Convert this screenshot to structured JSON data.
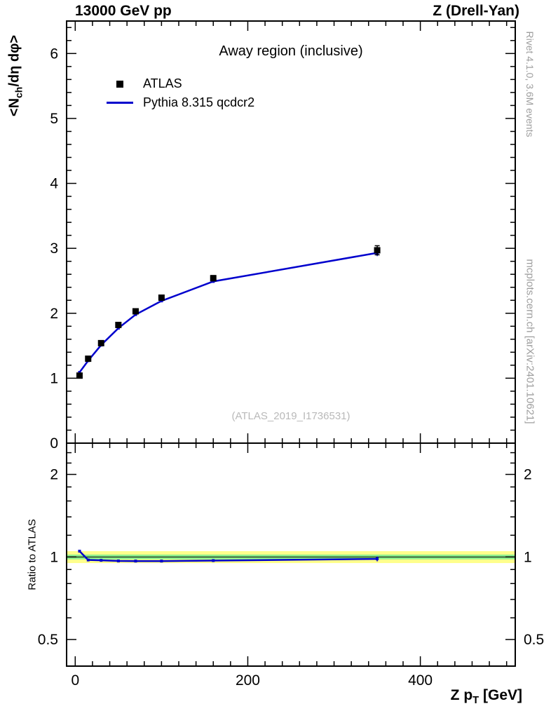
{
  "header": {
    "left": "13000 GeV pp",
    "right": "Z (Drell-Yan)"
  },
  "right_margin": {
    "top": "Rivet 4.1.0,  3.6M events",
    "bottom": "mcplots.cern.ch [arXiv:2401.10621]"
  },
  "main_panel": {
    "title": "Away region (inclusive)",
    "watermark": "(ATLAS_2019_I1736531)",
    "ylabel": {
      "pre": "<N",
      "sub": "ch",
      "post": "/dη dφ>"
    }
  },
  "ratio_panel": {
    "ylabel": "Ratio to ATLAS"
  },
  "x_axis": {
    "label": {
      "pre": "Z p",
      "sub": "T",
      "post": " [GeV]"
    }
  },
  "legend": {
    "items": [
      {
        "label": "ATLAS",
        "marker": "black-square",
        "color": "#000000"
      },
      {
        "label": "Pythia 8.315 qcdcr2",
        "marker": "blue-line",
        "color": "#0000cd"
      }
    ]
  },
  "chart_data": [
    {
      "type": "line",
      "panel": "main",
      "title": "Away region (inclusive)",
      "xlabel": "Z pT [GeV]",
      "ylabel": "<N_ch/deta dphi>",
      "xlim": [
        -10,
        510
      ],
      "ylim": [
        0,
        6.5
      ],
      "xticks": [
        0,
        200,
        400
      ],
      "yticks": [
        0,
        1,
        2,
        3,
        4,
        5,
        6
      ],
      "xminor_step": 20,
      "yminor_step": 0.2,
      "legend_position": "top-left",
      "grid": false,
      "series": [
        {
          "name": "ATLAS",
          "style": "markers",
          "marker": "square",
          "color": "#000000",
          "x": [
            5,
            15,
            30,
            50,
            70,
            100,
            160,
            350
          ],
          "y": [
            1.04,
            1.3,
            1.54,
            1.82,
            2.03,
            2.24,
            2.54,
            2.97
          ],
          "yerr": [
            0.02,
            0.02,
            0.02,
            0.03,
            0.03,
            0.03,
            0.04,
            0.07
          ]
        },
        {
          "name": "Pythia 8.315 qcdcr2",
          "style": "line+markers",
          "color": "#0000cd",
          "x": [
            5,
            15,
            30,
            50,
            70,
            100,
            160,
            350
          ],
          "y": [
            1.09,
            1.27,
            1.51,
            1.77,
            1.98,
            2.19,
            2.49,
            2.93
          ],
          "yerr": [
            0.01,
            0.01,
            0.01,
            0.01,
            0.01,
            0.01,
            0.02,
            0.05
          ]
        }
      ]
    },
    {
      "type": "ratio",
      "panel": "ratio",
      "ylabel": "Ratio to ATLAS",
      "yscale": "log",
      "ylim": [
        0.4,
        2.6
      ],
      "yticks": [
        0.5,
        1,
        2
      ],
      "ytick_labels": [
        "0.5",
        "1",
        "2"
      ],
      "yminors": [
        0.6,
        0.7,
        0.8,
        0.9,
        1.2,
        1.4,
        1.6,
        1.8,
        2.2,
        2.4
      ],
      "reference": 1,
      "bands": [
        {
          "name": "uncertainty-band-outer",
          "color": "#ffff8c",
          "lo": 0.95,
          "hi": 1.05
        },
        {
          "name": "uncertainty-band-inner",
          "color": "#8cee8c",
          "lo": 0.98,
          "hi": 1.02
        }
      ],
      "series": [
        {
          "name": "Pythia 8.315 qcdcr2 / ATLAS",
          "color": "#0000cd",
          "x": [
            5,
            15,
            30,
            50,
            70,
            100,
            160,
            350
          ],
          "y": [
            1.05,
            0.975,
            0.972,
            0.967,
            0.966,
            0.966,
            0.97,
            0.984
          ],
          "yerr": [
            0.008,
            0.008,
            0.008,
            0.008,
            0.008,
            0.008,
            0.01,
            0.02
          ]
        }
      ]
    }
  ]
}
